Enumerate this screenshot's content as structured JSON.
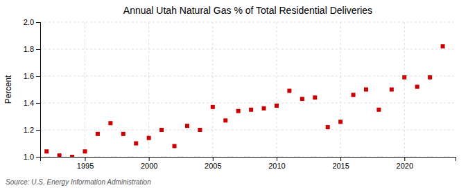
{
  "chart_data": {
    "type": "scatter",
    "title": "Annual Utah Natural Gas % of Total Residential Deliveries",
    "ylabel": "Percent",
    "source": "Source: U.S. Energy Information Administration",
    "x": [
      1992,
      1993,
      1994,
      1995,
      1996,
      1997,
      1998,
      1999,
      2000,
      2001,
      2002,
      2003,
      2004,
      2005,
      2006,
      2007,
      2008,
      2009,
      2010,
      2011,
      2012,
      2013,
      2014,
      2015,
      2016,
      2017,
      2018,
      2019,
      2020,
      2021,
      2022,
      2023
    ],
    "values": [
      1.04,
      1.01,
      1.0,
      1.04,
      1.17,
      1.25,
      1.17,
      1.1,
      1.14,
      1.2,
      1.08,
      1.23,
      1.2,
      1.37,
      1.27,
      1.34,
      1.35,
      1.36,
      1.38,
      1.49,
      1.43,
      1.44,
      1.22,
      1.26,
      1.46,
      1.5,
      1.35,
      1.5,
      1.59,
      1.52,
      1.59,
      1.82
    ],
    "color": "#cc0000",
    "marker": "square",
    "xlim": [
      1991.5,
      2024
    ],
    "xticks": [
      1995,
      2000,
      2005,
      2010,
      2015,
      2020
    ],
    "ylim": [
      1.0,
      2.0
    ],
    "yticks": [
      {
        "value": 1.0,
        "label": "1.0"
      },
      1.2,
      1.4,
      1.6,
      1.8,
      {
        "value": 2.0,
        "label": "2.0"
      }
    ],
    "grid": true
  }
}
